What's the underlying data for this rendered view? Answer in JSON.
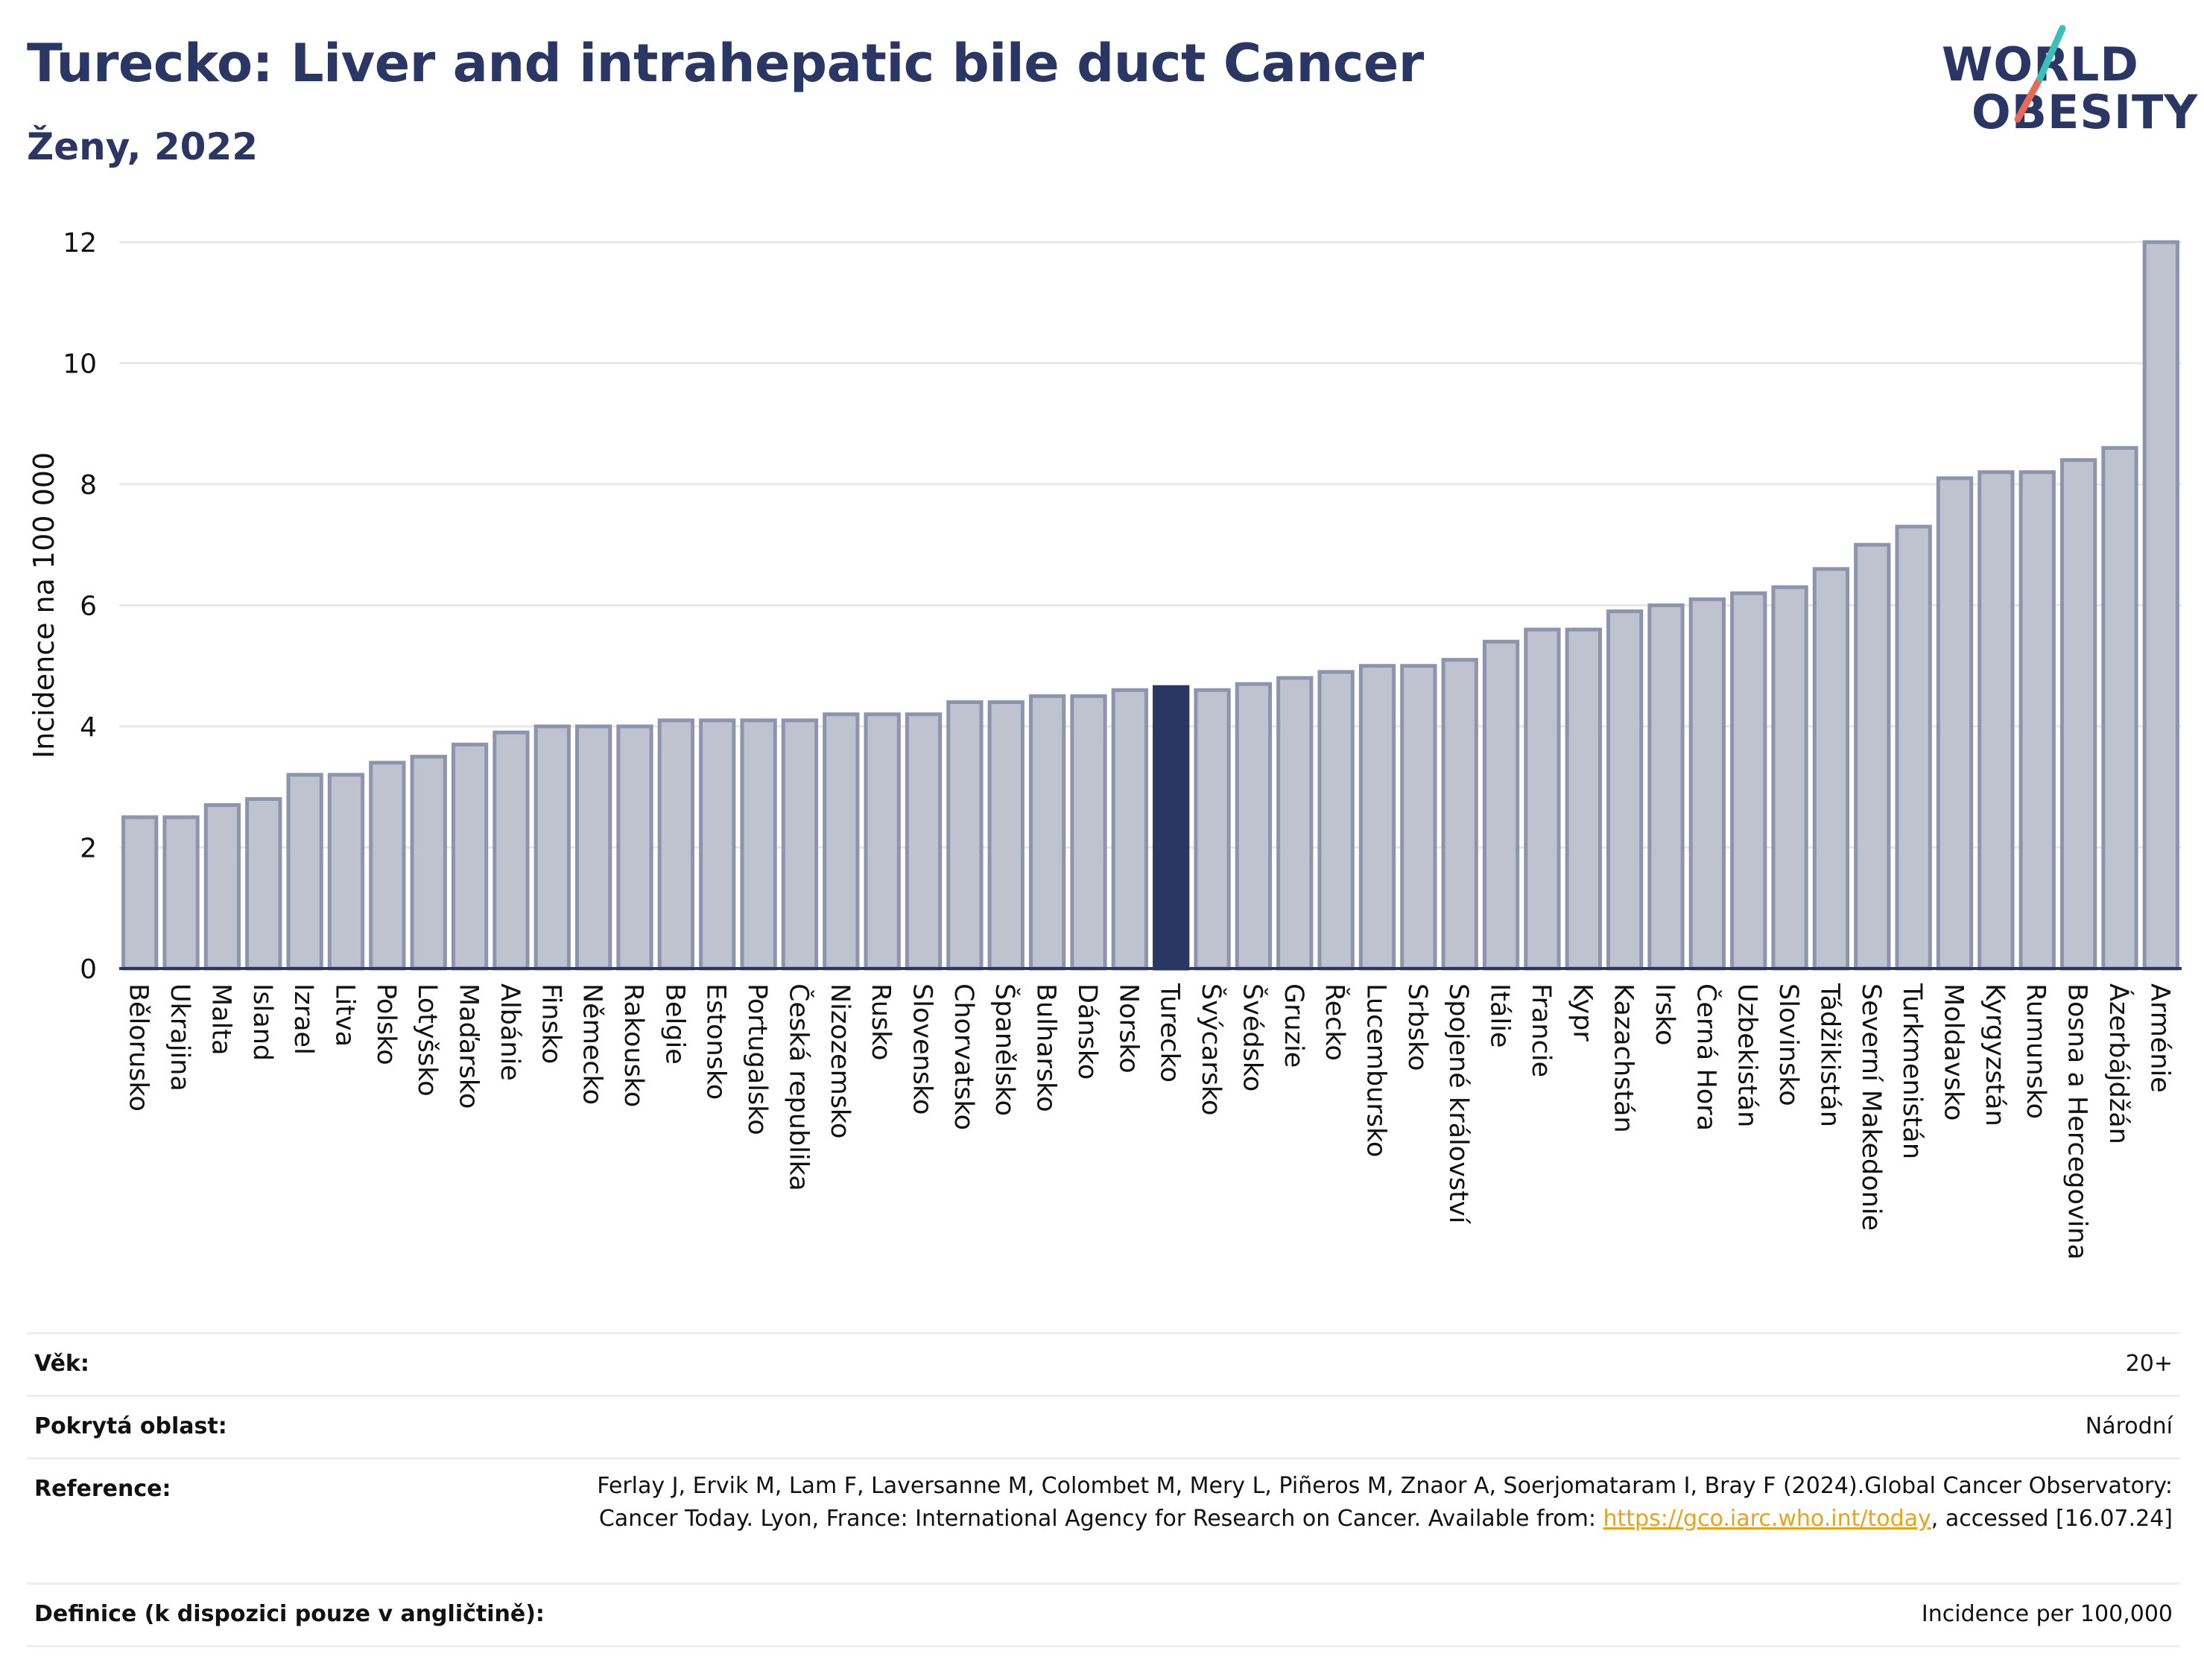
{
  "header": {
    "title": "Turecko: Liver and intrahepatic bile duct Cancer",
    "subtitle": "Ženy, 2022"
  },
  "logo": {
    "line1": "WORLD",
    "line2": "OBESITY"
  },
  "chart_data": {
    "type": "bar",
    "ylabel": "Incidence na 100 000",
    "xlabel": "",
    "ylim": [
      0,
      12
    ],
    "yticks": [
      0,
      2,
      4,
      6,
      8,
      10,
      12
    ],
    "grid": true,
    "highlight": "Turecko",
    "colors": {
      "bar": "#bfc3d0",
      "bar_border": "#8e94ad",
      "highlight": "#2a3663",
      "grid": "#e6e8ee",
      "axis": "#2a3663"
    },
    "categories": [
      "Bělorusko",
      "Ukrajina",
      "Malta",
      "Island",
      "Izrael",
      "Litva",
      "Polsko",
      "Lotyšsko",
      "Maďarsko",
      "Albánie",
      "Finsko",
      "Německo",
      "Rakousko",
      "Belgie",
      "Estonsko",
      "Portugalsko",
      "Česká republika",
      "Nizozemsko",
      "Rusko",
      "Slovensko",
      "Chorvatsko",
      "Španělsko",
      "Bulharsko",
      "Dánsko",
      "Norsko",
      "Turecko",
      "Švýcarsko",
      "Švédsko",
      "Gruzie",
      "Řecko",
      "Lucembursko",
      "Srbsko",
      "Spojené království",
      "Itálie",
      "Francie",
      "Kypr",
      "Kazachstán",
      "Irsko",
      "Černá Hora",
      "Uzbekistán",
      "Slovinsko",
      "Tádžikistán",
      "Severní Makedonie",
      "Turkmenistán",
      "Moldavsko",
      "Kyrgyzstán",
      "Rumunsko",
      "Bosna a Hercegovina",
      "Ázerbájdžán",
      "Arménie"
    ],
    "values": [
      2.5,
      2.5,
      2.7,
      2.8,
      3.2,
      3.2,
      3.4,
      3.5,
      3.7,
      3.9,
      4.0,
      4.0,
      4.0,
      4.1,
      4.1,
      4.1,
      4.1,
      4.2,
      4.2,
      4.2,
      4.4,
      4.4,
      4.5,
      4.5,
      4.6,
      4.65,
      4.6,
      4.7,
      4.8,
      4.9,
      5.0,
      5.0,
      5.1,
      5.4,
      5.6,
      5.6,
      5.9,
      6.0,
      6.1,
      6.2,
      6.3,
      6.6,
      7.0,
      7.3,
      8.1,
      8.2,
      8.2,
      8.4,
      8.6,
      12.0
    ]
  },
  "meta": {
    "rows": [
      {
        "key": "Věk:",
        "value": "20+"
      },
      {
        "key": "Pokrytá oblast:",
        "value": "Národní"
      },
      {
        "key": "Reference:",
        "value_pre": "Ferlay J, Ervik M, Lam F, Laversanne M, Colombet M, Mery L, Piñeros M, Znaor A, Soerjomataram I, Bray F (2024).Global Cancer Observatory: Cancer Today. Lyon, France: International Agency for Research on Cancer. Available from: ",
        "link": "https://gco.iarc.who.int/today",
        "value_post": ", accessed [16.07.24]"
      },
      {
        "key": "Definice (k dispozici pouze v angličtině):",
        "value": "Incidence per 100,000"
      }
    ]
  }
}
